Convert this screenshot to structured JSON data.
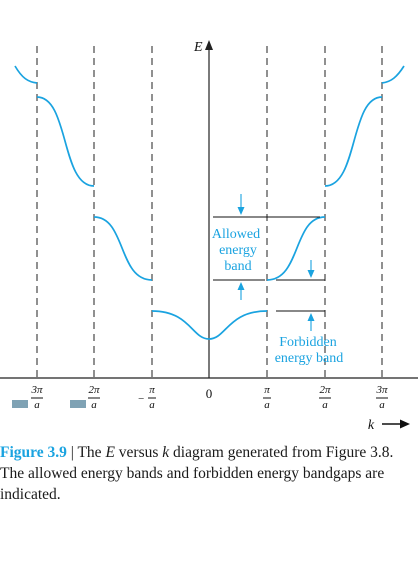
{
  "diagram": {
    "y_axis_label": "E",
    "x_axis_label": "k",
    "origin_label": "0",
    "tick_labels": [
      {
        "num": "3π",
        "den": "a",
        "sign": "−"
      },
      {
        "num": "2π",
        "den": "a",
        "sign": "−"
      },
      {
        "num": "π",
        "den": "a",
        "sign": "−"
      },
      {
        "num": "π",
        "den": "a",
        "sign": ""
      },
      {
        "num": "2π",
        "den": "a",
        "sign": ""
      },
      {
        "num": "3π",
        "den": "a",
        "sign": ""
      }
    ],
    "allowed_label": [
      "Allowed",
      "energy",
      "band"
    ],
    "forbidden_label": [
      "Forbidden",
      "energy band"
    ],
    "colors": {
      "curve": "#1aa3e0",
      "lines": "#111111"
    }
  },
  "caption": {
    "figure": "Figure 3.9",
    "separator": " | ",
    "text_before_E": "The ",
    "E": "E",
    "text_between": " versus ",
    "k": "k",
    "text_after": " diagram generated from Figure 3.8. The allowed energy bands and forbidden energy bandgaps are indicated."
  }
}
